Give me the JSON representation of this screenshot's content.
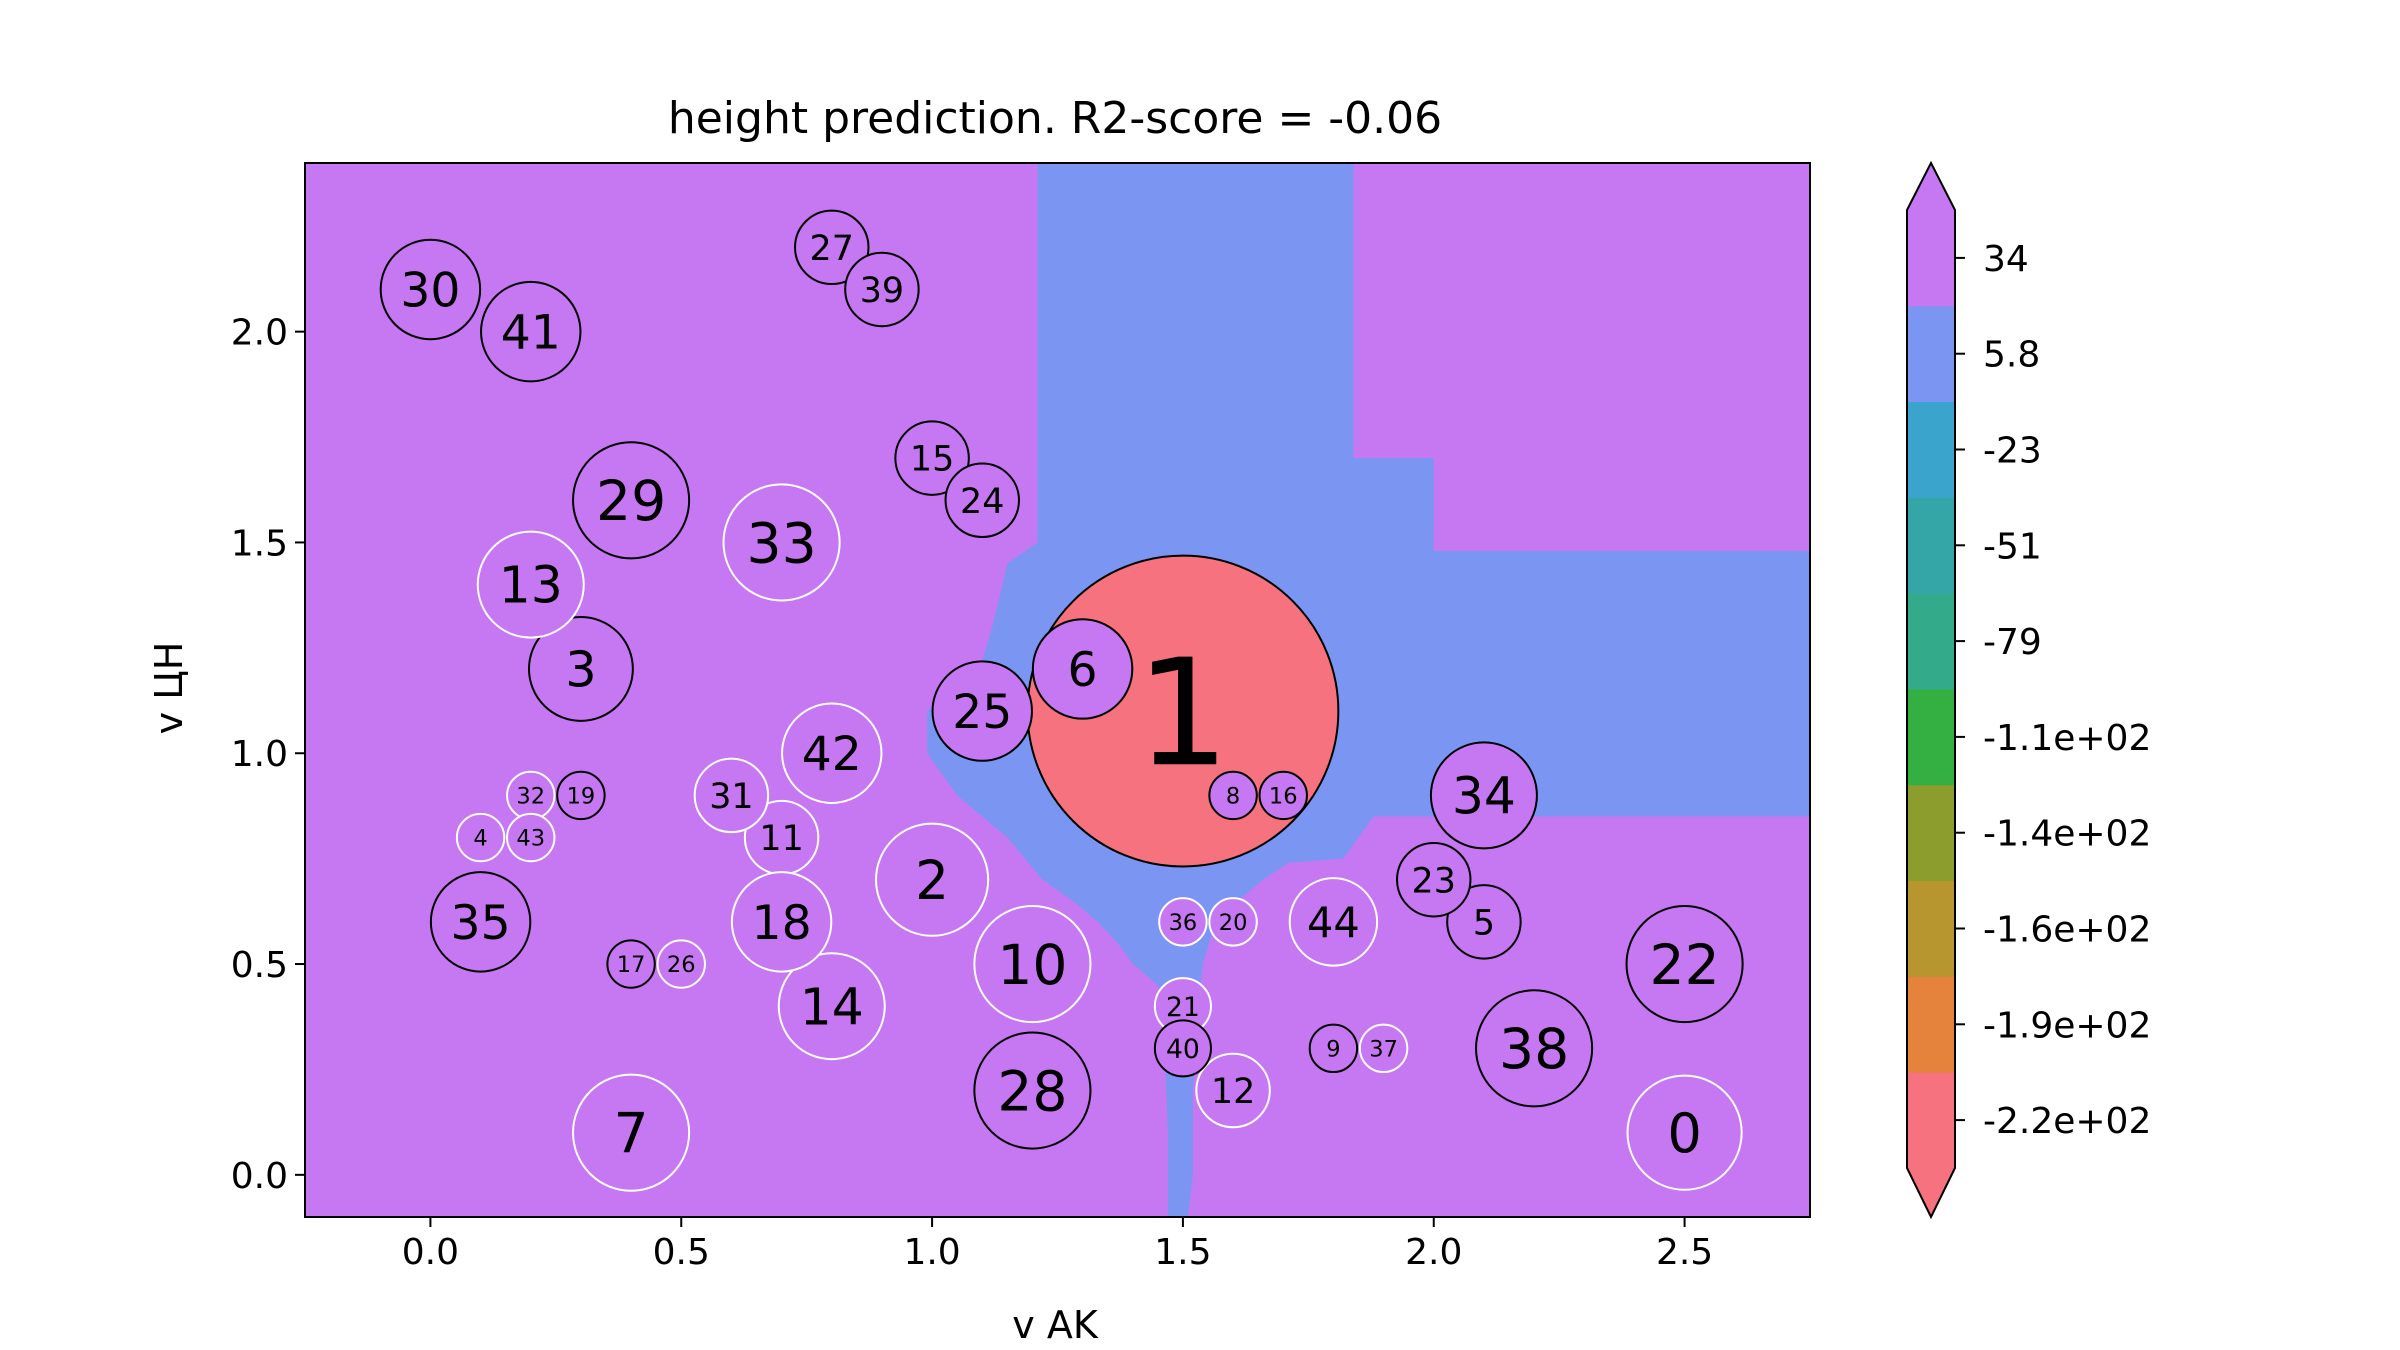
{
  "chart_data": {
    "type": "scatter",
    "title": "height prediction. R2-score = -0.06",
    "xlabel": "v AK",
    "ylabel": "v ЦН",
    "xlim": [
      -0.25,
      2.75
    ],
    "ylim": [
      -0.1,
      2.4
    ],
    "x_ticks": [
      0.0,
      0.5,
      1.0,
      1.5,
      2.0,
      2.5
    ],
    "x_tick_labels": [
      "0.0",
      "0.5",
      "1.0",
      "1.5",
      "2.0",
      "2.5"
    ],
    "y_ticks": [
      0.0,
      0.5,
      1.0,
      1.5,
      2.0
    ],
    "y_tick_labels": [
      "0.0",
      "0.5",
      "1.0",
      "1.5",
      "2.0"
    ],
    "grid": false,
    "background_regions": {
      "description_colors": {
        "high": "#c678f2",
        "mid": "#7b96f2",
        "low": "#f5727e"
      },
      "mid_region_polygon": [
        [
          1.21,
          2.4
        ],
        [
          1.84,
          2.4
        ],
        [
          1.84,
          1.7
        ],
        [
          2.0,
          1.7
        ],
        [
          2.0,
          1.48
        ],
        [
          2.75,
          1.48
        ],
        [
          2.75,
          0.85
        ],
        [
          2.1,
          0.85
        ],
        [
          1.88,
          0.85
        ],
        [
          1.82,
          0.75
        ],
        [
          1.71,
          0.74
        ],
        [
          1.66,
          0.7
        ],
        [
          1.62,
          0.66
        ],
        [
          1.58,
          0.62
        ],
        [
          1.56,
          0.58
        ],
        [
          1.54,
          0.5
        ],
        [
          1.53,
          0.4
        ],
        [
          1.52,
          0.2
        ],
        [
          1.52,
          0.0
        ],
        [
          1.51,
          -0.1
        ],
        [
          1.47,
          -0.1
        ],
        [
          1.47,
          0.1
        ],
        [
          1.46,
          0.4
        ],
        [
          1.45,
          0.45
        ],
        [
          1.4,
          0.5
        ],
        [
          1.37,
          0.55
        ],
        [
          1.33,
          0.6
        ],
        [
          1.28,
          0.65
        ],
        [
          1.22,
          0.7
        ],
        [
          1.15,
          0.8
        ],
        [
          1.1,
          0.85
        ],
        [
          1.05,
          0.9
        ],
        [
          1.02,
          0.95
        ],
        [
          0.99,
          1.0
        ],
        [
          0.99,
          1.1
        ],
        [
          1.1,
          1.22
        ],
        [
          1.12,
          1.3
        ],
        [
          1.15,
          1.45
        ],
        [
          1.21,
          1.5
        ]
      ]
    },
    "points": [
      {
        "label": "0",
        "x": 2.5,
        "y": 0.1,
        "value": 29,
        "edge": "white"
      },
      {
        "label": "1",
        "x": 1.5,
        "y": 1.1,
        "value": -215,
        "edge": "black"
      },
      {
        "label": "2",
        "x": 1.0,
        "y": 0.7,
        "value": 28,
        "edge": "white"
      },
      {
        "label": "3",
        "x": 0.3,
        "y": 1.2,
        "value": 24,
        "edge": "black"
      },
      {
        "label": "4",
        "x": 0.1,
        "y": 0.8,
        "value": 5,
        "edge": "white"
      },
      {
        "label": "5",
        "x": 2.1,
        "y": 0.6,
        "value": 12,
        "edge": "black"
      },
      {
        "label": "6",
        "x": 1.3,
        "y": 1.2,
        "value": 22,
        "edge": "black"
      },
      {
        "label": "7",
        "x": 0.4,
        "y": 0.1,
        "value": 30,
        "edge": "white"
      },
      {
        "label": "8",
        "x": 1.6,
        "y": 0.9,
        "value": 5,
        "edge": "black"
      },
      {
        "label": "9",
        "x": 1.8,
        "y": 0.3,
        "value": 5,
        "edge": "black"
      },
      {
        "label": "10",
        "x": 1.2,
        "y": 0.5,
        "value": 30,
        "edge": "white"
      },
      {
        "label": "11",
        "x": 0.7,
        "y": 0.8,
        "value": 12,
        "edge": "white"
      },
      {
        "label": "12",
        "x": 1.6,
        "y": 0.2,
        "value": 12,
        "edge": "white"
      },
      {
        "label": "13",
        "x": 0.2,
        "y": 1.4,
        "value": 25,
        "edge": "white"
      },
      {
        "label": "14",
        "x": 0.8,
        "y": 0.4,
        "value": 25,
        "edge": "white"
      },
      {
        "label": "15",
        "x": 1.0,
        "y": 1.7,
        "value": 12,
        "edge": "black"
      },
      {
        "label": "16",
        "x": 1.7,
        "y": 0.9,
        "value": 5,
        "edge": "black"
      },
      {
        "label": "17",
        "x": 0.4,
        "y": 0.5,
        "value": 5,
        "edge": "black"
      },
      {
        "label": "18",
        "x": 0.7,
        "y": 0.6,
        "value": 22,
        "edge": "white"
      },
      {
        "label": "19",
        "x": 0.3,
        "y": 0.9,
        "value": 5,
        "edge": "black"
      },
      {
        "label": "20",
        "x": 1.6,
        "y": 0.6,
        "value": 5,
        "edge": "white"
      },
      {
        "label": "21",
        "x": 1.5,
        "y": 0.4,
        "value": 7,
        "edge": "white"
      },
      {
        "label": "22",
        "x": 2.5,
        "y": 0.5,
        "value": 30,
        "edge": "black"
      },
      {
        "label": "23",
        "x": 2.0,
        "y": 0.7,
        "value": 12,
        "edge": "black"
      },
      {
        "label": "24",
        "x": 1.1,
        "y": 1.6,
        "value": 12,
        "edge": "black"
      },
      {
        "label": "25",
        "x": 1.1,
        "y": 1.1,
        "value": 22,
        "edge": "black"
      },
      {
        "label": "26",
        "x": 0.5,
        "y": 0.5,
        "value": 5,
        "edge": "white"
      },
      {
        "label": "27",
        "x": 0.8,
        "y": 2.2,
        "value": 12,
        "edge": "black"
      },
      {
        "label": "28",
        "x": 1.2,
        "y": 0.2,
        "value": 30,
        "edge": "black"
      },
      {
        "label": "29",
        "x": 0.4,
        "y": 1.6,
        "value": 30,
        "edge": "black"
      },
      {
        "label": "30",
        "x": 0.0,
        "y": 2.1,
        "value": 22,
        "edge": "black"
      },
      {
        "label": "31",
        "x": 0.6,
        "y": 0.9,
        "value": 12,
        "edge": "white"
      },
      {
        "label": "32",
        "x": 0.2,
        "y": 0.9,
        "value": 5,
        "edge": "white"
      },
      {
        "label": "33",
        "x": 0.7,
        "y": 1.5,
        "value": 30,
        "edge": "white"
      },
      {
        "label": "34",
        "x": 2.1,
        "y": 0.9,
        "value": 25,
        "edge": "black"
      },
      {
        "label": "35",
        "x": 0.1,
        "y": 0.6,
        "value": 22,
        "edge": "black"
      },
      {
        "label": "36",
        "x": 1.5,
        "y": 0.6,
        "value": 5,
        "edge": "white"
      },
      {
        "label": "37",
        "x": 1.9,
        "y": 0.3,
        "value": 5,
        "edge": "white"
      },
      {
        "label": "38",
        "x": 2.2,
        "y": 0.3,
        "value": 30,
        "edge": "black"
      },
      {
        "label": "39",
        "x": 0.9,
        "y": 2.1,
        "value": 12,
        "edge": "black"
      },
      {
        "label": "40",
        "x": 1.5,
        "y": 0.3,
        "value": 7,
        "edge": "black"
      },
      {
        "label": "41",
        "x": 0.2,
        "y": 2.0,
        "value": 22,
        "edge": "black"
      },
      {
        "label": "42",
        "x": 0.8,
        "y": 1.0,
        "value": 22,
        "edge": "white"
      },
      {
        "label": "43",
        "x": 0.2,
        "y": 0.8,
        "value": 5,
        "edge": "white"
      },
      {
        "label": "44",
        "x": 1.8,
        "y": 0.6,
        "value": 17,
        "edge": "white"
      }
    ],
    "colorbar": {
      "tick_labels": [
        "34",
        "5.8",
        "-23",
        "-51",
        "-79",
        "-1.1e+02",
        "-1.4e+02",
        "-1.6e+02",
        "-1.9e+02",
        "-2.2e+02"
      ],
      "colors": [
        "#f5727e",
        "#e5823b",
        "#b7952f",
        "#8c9d2e",
        "#33b041",
        "#33ab8a",
        "#35a6a8",
        "#3aa4cc",
        "#7b96f2",
        "#c678f2"
      ],
      "extend": "both"
    }
  }
}
